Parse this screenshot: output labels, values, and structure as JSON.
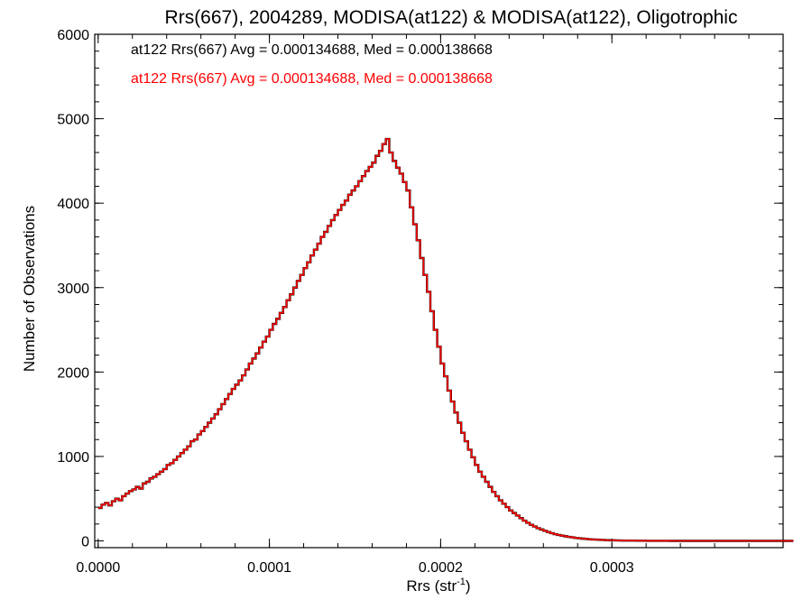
{
  "chart_data": {
    "type": "histogram",
    "title": "Rrs(667), 2004289, MODISA(at122) & MODISA(at122), Oligotrophic",
    "xlabel_base": "Rrs (str",
    "xlabel_sup": "-1",
    "xlabel_end": ")",
    "ylabel": "Number of Observations",
    "xlim": [
      -2e-06,
      0.0004
    ],
    "ylim": [
      -80,
      6000
    ],
    "x_ticks": [
      0.0,
      0.0001,
      0.0002,
      0.0003
    ],
    "x_tick_labels": [
      "0.0000",
      "0.0001",
      "0.0002",
      "0.0003"
    ],
    "y_ticks": [
      0,
      1000,
      2000,
      3000,
      4000,
      5000,
      6000
    ],
    "y_tick_labels": [
      "0",
      "1000",
      "2000",
      "3000",
      "4000",
      "5000",
      "6000"
    ],
    "grid": false,
    "bin_width": 2e-06,
    "legend": [
      {
        "text": "at122 Rrs(667) Avg = 0.000134688, Med = 0.000138668",
        "color": "#000000"
      },
      {
        "text": "at122 Rrs(667) Avg = 0.000134688, Med = 0.000138668",
        "color": "#ff0000"
      }
    ],
    "series": [
      {
        "name": "at122 Rrs(667)",
        "color": "#000000",
        "values": [
          390,
          430,
          450,
          420,
          470,
          500,
          480,
          530,
          560,
          590,
          610,
          640,
          620,
          680,
          700,
          740,
          760,
          790,
          820,
          850,
          900,
          920,
          960,
          1000,
          1040,
          1080,
          1120,
          1180,
          1200,
          1260,
          1300,
          1350,
          1400,
          1450,
          1500,
          1560,
          1620,
          1680,
          1740,
          1800,
          1850,
          1900,
          1960,
          2030,
          2100,
          2160,
          2220,
          2290,
          2360,
          2420,
          2500,
          2570,
          2630,
          2700,
          2770,
          2850,
          2920,
          3000,
          3080,
          3150,
          3230,
          3300,
          3380,
          3450,
          3520,
          3600,
          3660,
          3730,
          3800,
          3860,
          3920,
          3980,
          4030,
          4100,
          4150,
          4200,
          4260,
          4320,
          4380,
          4430,
          4480,
          4560,
          4620,
          4700,
          4760,
          4600,
          4500,
          4420,
          4350,
          4250,
          4150,
          3950,
          3750,
          3560,
          3350,
          3150,
          2950,
          2720,
          2500,
          2300,
          2100,
          1950,
          1780,
          1650,
          1520,
          1400,
          1280,
          1180,
          1080,
          990,
          900,
          820,
          760,
          700,
          640,
          580,
          530,
          480,
          440,
          400,
          360,
          330,
          300,
          270,
          240,
          215,
          190,
          170,
          150,
          135,
          120,
          105,
          92,
          80,
          70,
          62,
          55,
          48,
          42,
          36,
          31,
          27,
          23,
          20,
          17,
          15,
          13,
          11,
          9,
          8,
          7,
          6,
          5,
          4,
          4,
          3,
          3,
          2,
          2,
          2,
          1,
          1,
          1,
          1,
          1,
          1,
          1,
          0,
          0,
          0,
          0,
          0,
          0,
          0,
          0,
          0,
          0,
          0,
          0,
          0,
          0,
          0,
          0,
          0,
          0,
          0,
          0,
          0,
          0,
          0,
          0,
          0,
          0,
          0,
          0,
          0,
          0,
          0,
          0,
          0,
          0,
          0,
          0,
          0
        ]
      },
      {
        "name": "at122 Rrs(667)",
        "color": "#ff0000",
        "values": [
          390,
          430,
          450,
          420,
          470,
          500,
          480,
          530,
          560,
          590,
          610,
          640,
          620,
          680,
          700,
          740,
          760,
          790,
          820,
          850,
          900,
          920,
          960,
          1000,
          1040,
          1080,
          1120,
          1180,
          1200,
          1260,
          1300,
          1350,
          1400,
          1450,
          1500,
          1560,
          1620,
          1680,
          1740,
          1800,
          1850,
          1900,
          1960,
          2030,
          2100,
          2160,
          2220,
          2290,
          2360,
          2420,
          2500,
          2570,
          2630,
          2700,
          2770,
          2850,
          2920,
          3000,
          3080,
          3150,
          3230,
          3300,
          3380,
          3450,
          3520,
          3600,
          3660,
          3730,
          3800,
          3860,
          3920,
          3980,
          4030,
          4100,
          4150,
          4200,
          4260,
          4320,
          4380,
          4430,
          4480,
          4560,
          4620,
          4700,
          4760,
          4600,
          4500,
          4420,
          4350,
          4250,
          4150,
          3950,
          3750,
          3560,
          3350,
          3150,
          2950,
          2720,
          2500,
          2300,
          2100,
          1950,
          1780,
          1650,
          1520,
          1400,
          1280,
          1180,
          1080,
          990,
          900,
          820,
          760,
          700,
          640,
          580,
          530,
          480,
          440,
          400,
          360,
          330,
          300,
          270,
          240,
          215,
          190,
          170,
          150,
          135,
          120,
          105,
          92,
          80,
          70,
          62,
          55,
          48,
          42,
          36,
          31,
          27,
          23,
          20,
          17,
          15,
          13,
          11,
          9,
          8,
          7,
          6,
          5,
          4,
          4,
          3,
          3,
          2,
          2,
          2,
          1,
          1,
          1,
          1,
          1,
          1,
          1,
          0,
          0,
          0,
          0,
          0,
          0,
          0,
          0,
          0,
          0,
          0,
          0,
          0,
          0,
          0,
          0,
          0,
          0,
          0,
          0,
          0,
          0,
          0,
          0,
          0,
          0,
          0,
          0,
          0,
          0,
          0,
          0,
          0,
          0,
          0,
          0,
          0
        ]
      }
    ]
  }
}
